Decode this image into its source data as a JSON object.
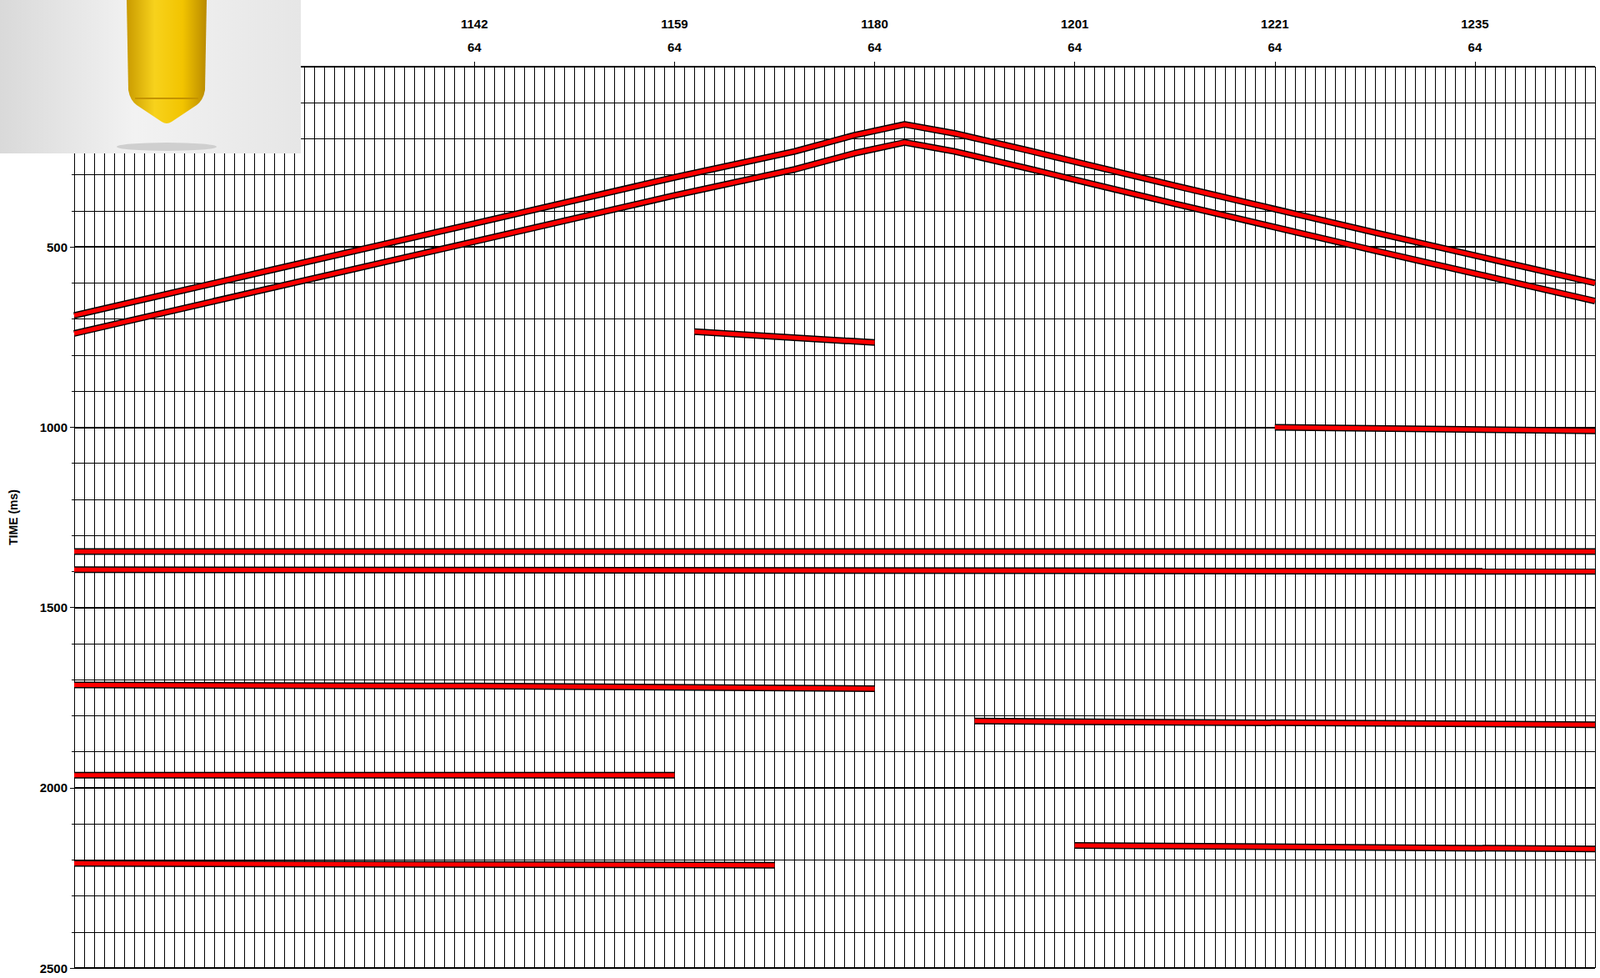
{
  "chart_data": {
    "type": "line",
    "y_label": "TIME (ms)",
    "categories": [
      null,
      null,
      null,
      null,
      null,
      null,
      null,
      null,
      null,
      null,
      null,
      null,
      null,
      null,
      null,
      null,
      null,
      null,
      null,
      null,
      null,
      null,
      null,
      null,
      null,
      null,
      null,
      null,
      null,
      null,
      null,
      null,
      null,
      null,
      null,
      null,
      null,
      null,
      null,
      null,
      "1142",
      null,
      null,
      null,
      null,
      null,
      null,
      null,
      null,
      null,
      null,
      null,
      null,
      null,
      null,
      null,
      null,
      null,
      null,
      null,
      "1159",
      null,
      null,
      null,
      null,
      null,
      null,
      null,
      null,
      null,
      null,
      null,
      null,
      null,
      null,
      null,
      null,
      null,
      null,
      null,
      "1180",
      null,
      null,
      null,
      null,
      null,
      null,
      null,
      null,
      null,
      null,
      null,
      null,
      null,
      null,
      null,
      null,
      null,
      null,
      null,
      "1201",
      null,
      null,
      null,
      null,
      null,
      null,
      null,
      null,
      null,
      null,
      null,
      null,
      null,
      null,
      null,
      null,
      null,
      null,
      null,
      "1221",
      null,
      null,
      null,
      null,
      null,
      null,
      null,
      null,
      null,
      null,
      null,
      null,
      null,
      null,
      null,
      null,
      null,
      null,
      null,
      "1235",
      null,
      null,
      null,
      null,
      null,
      null,
      null,
      null,
      null,
      null,
      null,
      null
    ],
    "category_labels_2": [
      null,
      null,
      null,
      null,
      null,
      null,
      null,
      null,
      null,
      null,
      null,
      null,
      null,
      null,
      null,
      null,
      null,
      null,
      null,
      null,
      null,
      null,
      null,
      null,
      null,
      null,
      null,
      null,
      null,
      null,
      null,
      null,
      null,
      null,
      null,
      null,
      null,
      null,
      null,
      null,
      "64",
      null,
      null,
      null,
      null,
      null,
      null,
      null,
      null,
      null,
      null,
      null,
      null,
      null,
      null,
      null,
      null,
      null,
      null,
      null,
      "64",
      null,
      null,
      null,
      null,
      null,
      null,
      null,
      null,
      null,
      null,
      null,
      null,
      null,
      null,
      null,
      null,
      null,
      null,
      null,
      "64",
      null,
      null,
      null,
      null,
      null,
      null,
      null,
      null,
      null,
      null,
      null,
      null,
      null,
      null,
      null,
      null,
      null,
      null,
      null,
      "64",
      null,
      null,
      null,
      null,
      null,
      null,
      null,
      null,
      null,
      null,
      null,
      null,
      null,
      null,
      null,
      null,
      null,
      null,
      null,
      "64",
      null,
      null,
      null,
      null,
      null,
      null,
      null,
      null,
      null,
      null,
      null,
      null,
      null,
      null,
      null,
      null,
      null,
      null,
      null,
      "64",
      null,
      null,
      null,
      null,
      null,
      null,
      null,
      null,
      null,
      null,
      null,
      null
    ],
    "ylim": [
      0,
      2500
    ],
    "yticks": [
      500,
      1000,
      1500,
      2000,
      2500
    ],
    "grid": true,
    "color": "#ff0000",
    "series": [
      {
        "values": [
          [
            0,
            690
          ],
          [
            20,
            562
          ],
          [
            40,
            435
          ],
          [
            60,
            307
          ],
          [
            72,
            235
          ],
          [
            78,
            190
          ],
          [
            83,
            160
          ],
          [
            88,
            185
          ],
          [
            95,
            230
          ],
          [
            110,
            330
          ],
          [
            130,
            460
          ],
          [
            152,
            600
          ]
        ]
      },
      {
        "values": [
          [
            0,
            740
          ],
          [
            20,
            612
          ],
          [
            40,
            485
          ],
          [
            60,
            357
          ],
          [
            72,
            285
          ],
          [
            78,
            240
          ],
          [
            83,
            210
          ],
          [
            88,
            235
          ],
          [
            95,
            280
          ],
          [
            110,
            380
          ],
          [
            130,
            510
          ],
          [
            152,
            650
          ]
        ]
      },
      {
        "values": [
          [
            62,
            735
          ],
          [
            80,
            765
          ]
        ]
      },
      {
        "values": [
          [
            120,
            1000
          ],
          [
            152,
            1010
          ]
        ]
      },
      {
        "values": [
          [
            0,
            1345
          ],
          [
            152,
            1345
          ]
        ]
      },
      {
        "values": [
          [
            0,
            1395
          ],
          [
            152,
            1400
          ]
        ]
      },
      {
        "values": [
          [
            0,
            1715
          ],
          [
            40,
            1718
          ],
          [
            80,
            1725
          ]
        ]
      },
      {
        "values": [
          [
            90,
            1815
          ],
          [
            152,
            1825
          ]
        ]
      },
      {
        "values": [
          [
            0,
            1965
          ],
          [
            60,
            1965
          ]
        ]
      },
      {
        "values": [
          [
            100,
            2160
          ],
          [
            152,
            2170
          ]
        ]
      },
      {
        "values": [
          [
            0,
            2210
          ],
          [
            70,
            2215
          ]
        ]
      }
    ]
  }
}
